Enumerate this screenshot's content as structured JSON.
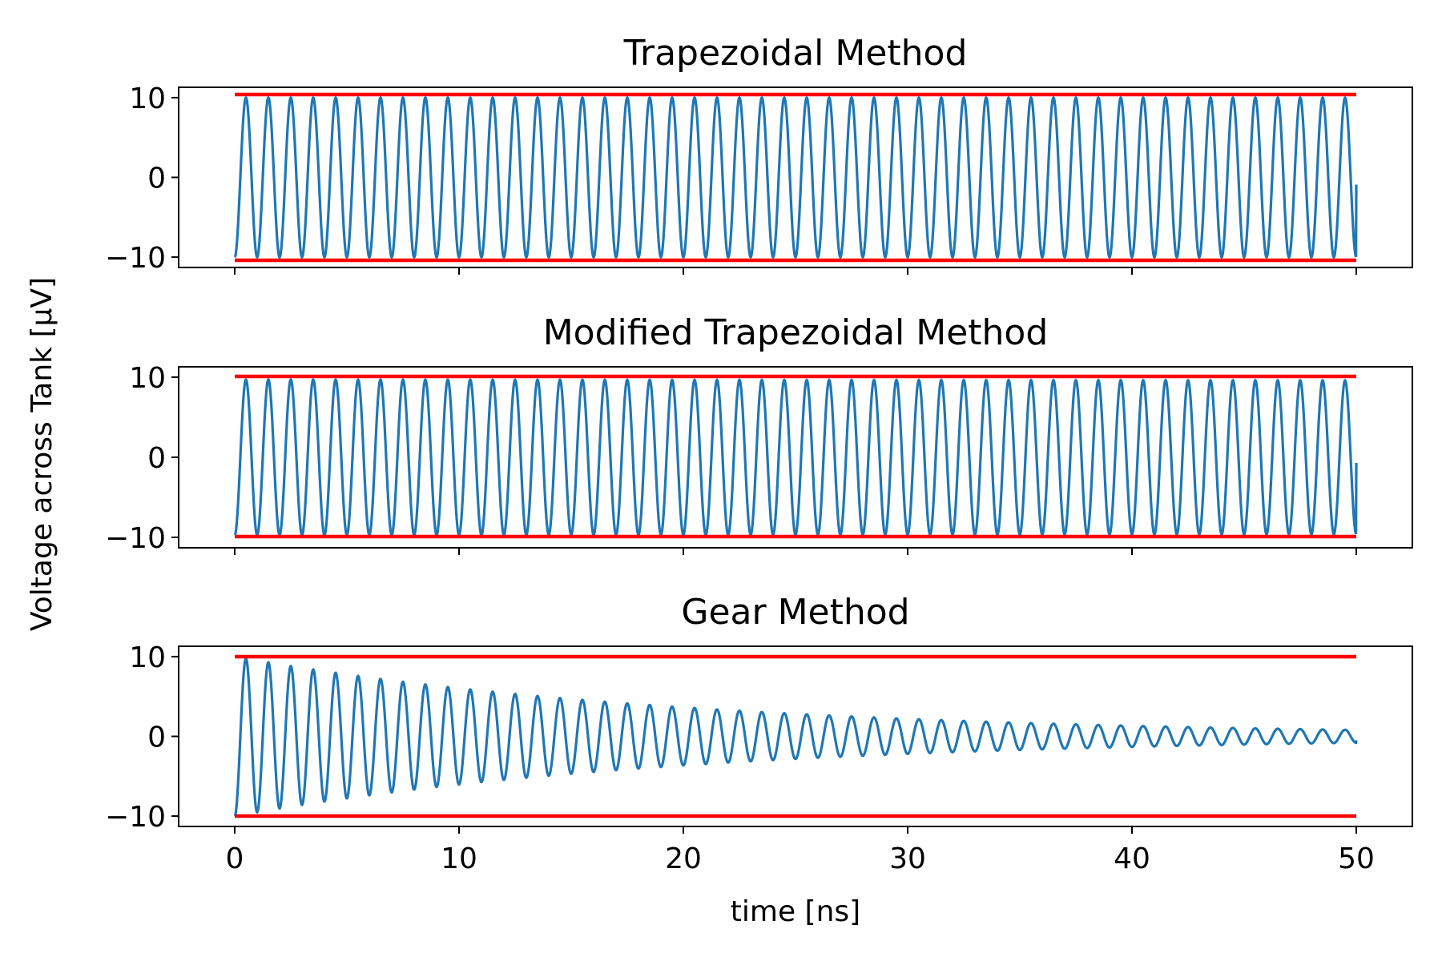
{
  "chart_data": {
    "type": "line",
    "layout": "3 stacked subplots, shared x-axis",
    "grid": false,
    "ylabel": "Voltage across Tank [μV]",
    "xlabel": "time [ns]",
    "xlim": [
      -2.5,
      52.5
    ],
    "xticks": [
      0,
      10,
      20,
      30,
      40,
      50
    ],
    "colors": {
      "signal": "#1f77b4",
      "envelope": "#ff0000"
    },
    "subplots": [
      {
        "title": "Trapezoidal Method",
        "ylim": [
          -11.3,
          11.3
        ],
        "yticks": [
          10,
          0,
          -10
        ],
        "envelope": {
          "upper": 10.4,
          "lower": -10.4,
          "x": [
            0,
            50
          ]
        },
        "series": {
          "x_start": 0,
          "x_end": 50,
          "cycles": 50,
          "initial": -10,
          "amplitude_start": 10,
          "amplitude_end": 10,
          "end_value": -0.9
        }
      },
      {
        "title": "Modified Trapezoidal Method",
        "ylim": [
          -11.3,
          11.3
        ],
        "yticks": [
          10,
          0,
          -10
        ],
        "envelope": {
          "upper": 10.1,
          "lower": -9.9,
          "x": [
            0,
            50
          ]
        },
        "series": {
          "x_start": 0,
          "x_end": 50,
          "cycles": 50,
          "initial": -10,
          "amplitude_start": 9.7,
          "amplitude_end": 9.6,
          "end_value": -0.7
        }
      },
      {
        "title": "Gear Method",
        "ylim": [
          -11.3,
          11.3
        ],
        "yticks": [
          10,
          0,
          -10
        ],
        "envelope": {
          "upper": 10,
          "lower": -10,
          "x": [
            0,
            50
          ]
        },
        "series": {
          "x_start": 0,
          "x_end": 50,
          "cycles": 50,
          "initial": -10,
          "amplitude_start": 10,
          "amplitude_end": 0.8,
          "end_value": -0.5
        }
      }
    ]
  }
}
